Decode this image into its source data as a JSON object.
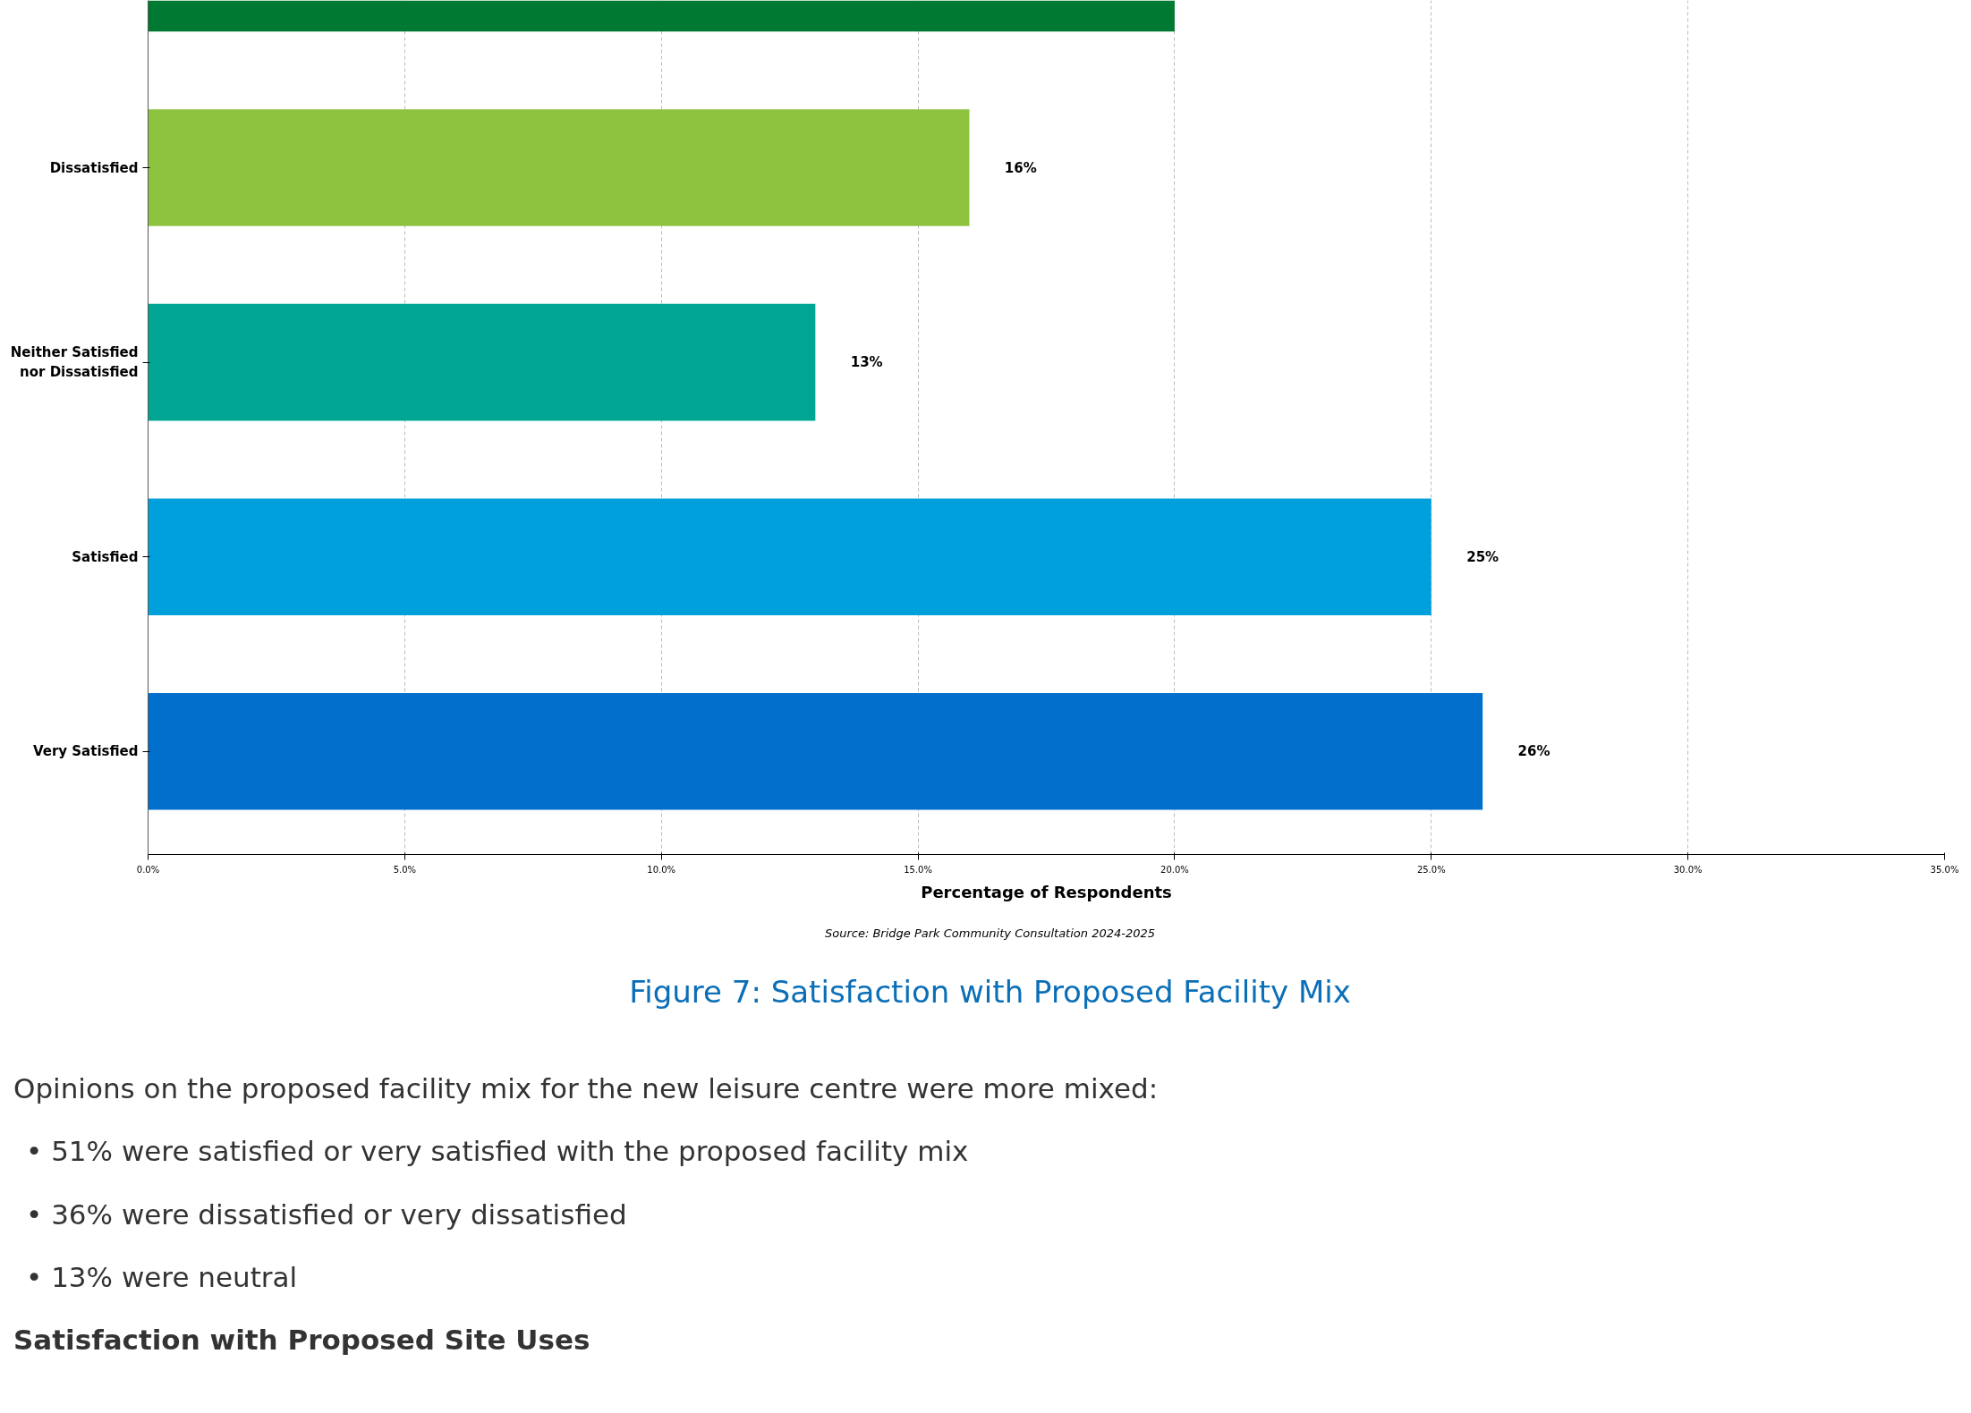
{
  "chart_data": {
    "type": "bar",
    "orientation": "horizontal",
    "title": "Figure 7: Satisfaction with Proposed Facility Mix",
    "xlabel": "Percentage of Respondents",
    "categories": [
      null,
      "Dissatisfied",
      "Neither Satisfied\nnor Dissatisfied",
      "Satisfied",
      "Very Satisfied"
    ],
    "values": [
      20,
      16,
      13,
      25,
      26
    ],
    "colors": [
      "#007a33",
      "#8dc33f",
      "#00a693",
      "#00a0dc",
      "#0070cc"
    ],
    "value_labels": [
      null,
      "16%",
      "13%",
      "25%",
      "26%"
    ],
    "xlim": [
      0,
      35
    ],
    "xticks": [
      {
        "value": 0,
        "label": "0.0%"
      },
      {
        "value": 5,
        "label": "5.0%"
      },
      {
        "value": 10,
        "label": "10.0%"
      },
      {
        "value": 15,
        "label": "15.0%"
      },
      {
        "value": 20,
        "label": "20.0%"
      },
      {
        "value": 25,
        "label": "25.0%"
      },
      {
        "value": 30,
        "label": "30.0%"
      },
      {
        "value": 35,
        "label": "35.0%"
      }
    ],
    "grid": "x",
    "annotations": [
      "Source: Bridge Park Community Consultation 2024-2025",
      "Opinions on the proposed facility mix for the new leisure centre were more mixed:",
      "• 51% were satisfied or very satisfied with the proposed facility mix",
      "• 36% were dissatisfied or very dissatisfied",
      "• 13% were neutral",
      "Satisfaction with Proposed Site Uses"
    ]
  }
}
